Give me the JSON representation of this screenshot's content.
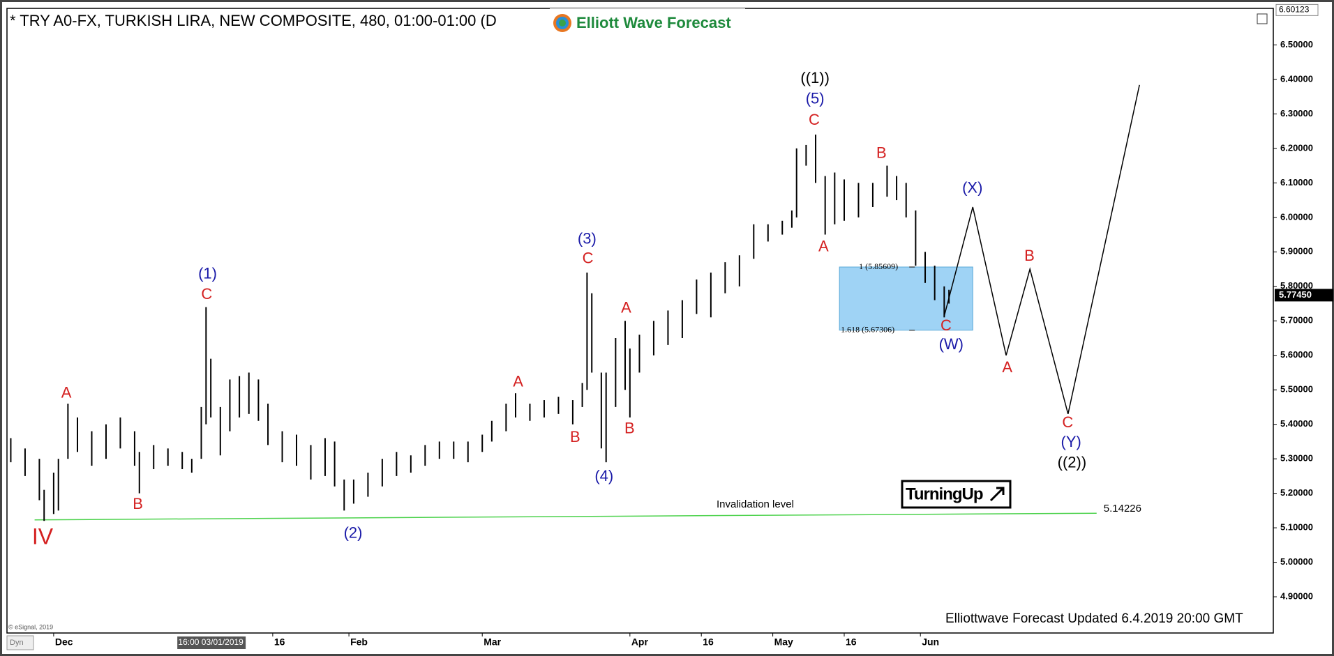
{
  "chart_data": {
    "type": "ohlc",
    "title": "* TRY A0-FX, TURKISH LIRA, NEW COMPOSITE, 480, 01:00-01:00 (D",
    "logo": "Elliott Wave Forecast",
    "footer": "Elliottwave Forecast Updated 6.4.2019 20:00 GMT",
    "copyright": "© eSignal, 2019",
    "corner": "Dyn",
    "badge": "TurningUp",
    "color": "#000000",
    "xlim": [
      -9.8,
      256.1
    ],
    "ylim": [
      4.795,
      6.606
    ],
    "yticks": [
      {
        "value": 4.9,
        "label": "4.90000"
      },
      {
        "value": 5.0,
        "label": "5.00000"
      },
      {
        "value": 5.1,
        "label": "5.10000"
      },
      {
        "value": 5.2,
        "label": "5.20000"
      },
      {
        "value": 5.3,
        "label": "5.30000"
      },
      {
        "value": 5.4,
        "label": "5.40000"
      },
      {
        "value": 5.5,
        "label": "5.50000"
      },
      {
        "value": 5.6,
        "label": "5.60000"
      },
      {
        "value": 5.7,
        "label": "5.70000"
      },
      {
        "value": 5.8,
        "label": "5.80000"
      },
      {
        "value": 5.9,
        "label": "5.90000"
      },
      {
        "value": 6.0,
        "label": "6.00000"
      },
      {
        "value": 6.1,
        "label": "6.10000"
      },
      {
        "value": 6.2,
        "label": "6.20000"
      },
      {
        "value": 6.3,
        "label": "6.30000"
      },
      {
        "value": 6.4,
        "label": "6.40000"
      },
      {
        "value": 6.5,
        "label": "6.50000"
      }
    ],
    "axis_top": 6.60123,
    "last_price": {
      "value": 5.7745,
      "label": "5.77450"
    },
    "xticks": [
      {
        "value": 0,
        "label": "Dec"
      },
      {
        "value": 46,
        "label": "16"
      },
      {
        "value": 62,
        "label": "Feb"
      },
      {
        "value": 90,
        "label": "Mar"
      },
      {
        "value": 121,
        "label": "Apr"
      },
      {
        "value": 136,
        "label": "16"
      },
      {
        "value": 151,
        "label": "May"
      },
      {
        "value": 166,
        "label": "16"
      },
      {
        "value": 182,
        "label": "Jun"
      }
    ],
    "cursor": {
      "value": 33,
      "label": "16:00 03/01/2019"
    },
    "x": [
      -9,
      -6,
      -3,
      -2,
      0,
      1,
      3,
      5,
      8,
      11,
      14,
      17,
      18,
      21,
      24,
      27,
      29,
      31,
      32,
      33,
      35,
      37,
      39,
      41,
      43,
      45,
      48,
      51,
      54,
      57,
      59,
      61,
      63,
      66,
      69,
      72,
      75,
      78,
      81,
      84,
      87,
      90,
      92,
      95,
      97,
      100,
      103,
      106,
      109,
      111,
      112,
      113,
      115,
      116,
      118,
      120,
      121,
      123,
      126,
      129,
      132,
      135,
      138,
      141,
      144,
      147,
      150,
      153,
      155,
      156,
      158,
      160,
      162,
      164,
      166,
      169,
      172,
      175,
      177,
      179,
      181,
      183,
      185,
      187,
      188
    ],
    "high": [
      5.36,
      5.33,
      5.3,
      5.21,
      5.26,
      5.3,
      5.46,
      5.42,
      5.38,
      5.4,
      5.42,
      5.38,
      5.32,
      5.34,
      5.33,
      5.32,
      5.3,
      5.45,
      5.74,
      5.59,
      5.45,
      5.53,
      5.54,
      5.55,
      5.53,
      5.46,
      5.38,
      5.37,
      5.34,
      5.36,
      5.35,
      5.24,
      5.24,
      5.26,
      5.3,
      5.32,
      5.31,
      5.34,
      5.35,
      5.35,
      5.35,
      5.37,
      5.41,
      5.46,
      5.49,
      5.46,
      5.47,
      5.48,
      5.47,
      5.52,
      5.84,
      5.78,
      5.55,
      5.55,
      5.65,
      5.7,
      5.62,
      5.66,
      5.7,
      5.73,
      5.76,
      5.82,
      5.84,
      5.87,
      5.89,
      5.98,
      5.98,
      5.99,
      6.02,
      6.2,
      6.21,
      6.24,
      6.12,
      6.13,
      6.11,
      6.1,
      6.1,
      6.15,
      6.12,
      6.1,
      6.02,
      5.9,
      5.86,
      5.8,
      5.79
    ],
    "low": [
      5.29,
      5.25,
      5.18,
      5.12,
      5.14,
      5.15,
      5.3,
      5.32,
      5.28,
      5.3,
      5.33,
      5.28,
      5.2,
      5.27,
      5.28,
      5.27,
      5.26,
      5.3,
      5.4,
      5.42,
      5.31,
      5.38,
      5.42,
      5.43,
      5.41,
      5.34,
      5.29,
      5.28,
      5.24,
      5.25,
      5.22,
      5.15,
      5.17,
      5.19,
      5.22,
      5.25,
      5.26,
      5.28,
      5.3,
      5.3,
      5.29,
      5.32,
      5.35,
      5.38,
      5.42,
      5.41,
      5.42,
      5.43,
      5.4,
      5.45,
      5.5,
      5.55,
      5.33,
      5.29,
      5.45,
      5.5,
      5.42,
      5.55,
      5.6,
      5.63,
      5.65,
      5.72,
      5.71,
      5.78,
      5.8,
      5.88,
      5.93,
      5.95,
      5.97,
      6.0,
      6.15,
      6.1,
      5.95,
      5.98,
      5.99,
      6.0,
      6.03,
      6.06,
      6.05,
      6.0,
      5.86,
      5.81,
      5.76,
      5.71,
      5.75
    ],
    "projection": {
      "x": [
        187,
        193,
        200,
        205,
        213,
        228
      ],
      "values": [
        5.714,
        6.03,
        5.6,
        5.85,
        5.43,
        6.384
      ]
    },
    "fib_zone": {
      "xlim": [
        165,
        193
      ],
      "color": "#9fd3f5",
      "levels": [
        {
          "value": 5.85609,
          "label": "1 (5.85609)"
        },
        {
          "value": 5.67306,
          "label": "1.618 (5.67306)"
        }
      ]
    },
    "invalidation": {
      "label": "Invalidation level",
      "x": [
        -4,
        219
      ],
      "values": [
        5.123,
        5.14226
      ],
      "color": "#4cd24c"
    },
    "wave_labels": [
      {
        "text": "IV",
        "color": "#d42020"
      },
      {
        "text": "A",
        "color": "#d42020"
      },
      {
        "text": "B",
        "color": "#d42020"
      },
      {
        "text": "(1)",
        "color": "#1a1aa8"
      },
      {
        "text": "C",
        "color": "#d42020"
      },
      {
        "text": "(2)",
        "color": "#1a1aa8"
      },
      {
        "text": "A",
        "color": "#d42020"
      },
      {
        "text": "B",
        "color": "#d42020"
      },
      {
        "text": "(3)",
        "color": "#1a1aa8"
      },
      {
        "text": "C",
        "color": "#d42020"
      },
      {
        "text": "(4)",
        "color": "#1a1aa8"
      },
      {
        "text": "A",
        "color": "#d42020"
      },
      {
        "text": "B",
        "color": "#d42020"
      },
      {
        "text": "((1))",
        "color": "#000000"
      },
      {
        "text": "(5)",
        "color": "#1a1aa8"
      },
      {
        "text": "C",
        "color": "#d42020"
      },
      {
        "text": "A",
        "color": "#d42020"
      },
      {
        "text": "B",
        "color": "#d42020"
      },
      {
        "text": "C",
        "color": "#d42020"
      },
      {
        "text": "(W)",
        "color": "#1a1aa8"
      },
      {
        "text": "(X)",
        "color": "#1a1aa8"
      },
      {
        "text": "B",
        "color": "#d42020"
      },
      {
        "text": "A",
        "color": "#d42020"
      },
      {
        "text": "C",
        "color": "#d42020"
      },
      {
        "text": "(Y)",
        "color": "#1a1aa8"
      },
      {
        "text": "((2))",
        "color": "#000000"
      }
    ]
  }
}
